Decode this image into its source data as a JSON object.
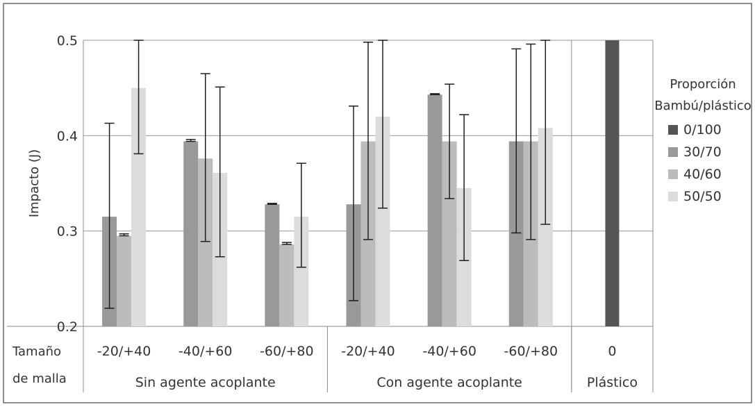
{
  "chart_data": {
    "type": "bar",
    "title": "",
    "ylabel": "Impacto (J)",
    "xlabel_row_title_1": "Tamaño",
    "xlabel_row_title_2": "de malla",
    "ylim": [
      0.2,
      0.5
    ],
    "yticks": [
      "0.2",
      "0.3",
      "0.4",
      "0.5"
    ],
    "grid": true,
    "legend_title_1": "Proporción",
    "legend_title_2": "Bambú/plástico",
    "legend_placement": "right",
    "series": [
      {
        "name": "0/100",
        "color": "#555555"
      },
      {
        "name": "30/70",
        "color": "#999999"
      },
      {
        "name": "40/60",
        "color": "#bcbcbc"
      },
      {
        "name": "50/50",
        "color": "#dcdcdc"
      }
    ],
    "categories": [
      "-20/+40",
      "-40/+60",
      "-60/+80",
      "-20/+40",
      "-40/+60",
      "-60/+80",
      "0"
    ],
    "groups": [
      {
        "label": "Sin agente acoplante",
        "span": 3
      },
      {
        "label": "Con agente acoplante",
        "span": 3
      },
      {
        "label": "Plástico",
        "span": 1
      }
    ],
    "data": [
      {
        "category": "-20/+40",
        "values": [
          null,
          0.315,
          0.295,
          0.45
        ],
        "errors": [
          null,
          [
            0.219,
            0.413
          ],
          [
            0.295,
            0.297
          ],
          [
            0.381,
            0.5
          ]
        ]
      },
      {
        "category": "-40/+60",
        "values": [
          null,
          0.394,
          0.376,
          0.361
        ],
        "errors": [
          null,
          [
            0.394,
            0.396
          ],
          [
            0.289,
            0.465
          ],
          [
            0.273,
            0.451
          ]
        ]
      },
      {
        "category": "-60/+80",
        "values": [
          null,
          0.328,
          0.286,
          0.315
        ],
        "errors": [
          null,
          [
            0.328,
            0.329
          ],
          [
            0.286,
            0.288
          ],
          [
            0.262,
            0.371
          ]
        ]
      },
      {
        "category": "-20/+40",
        "values": [
          null,
          0.328,
          0.394,
          0.42
        ],
        "errors": [
          null,
          [
            0.227,
            0.431
          ],
          [
            0.291,
            0.498
          ],
          [
            0.324,
            0.5
          ]
        ]
      },
      {
        "category": "-40/+60",
        "values": [
          null,
          0.443,
          0.394,
          0.345
        ],
        "errors": [
          null,
          [
            0.443,
            0.444
          ],
          [
            0.334,
            0.454
          ],
          [
            0.269,
            0.422
          ]
        ]
      },
      {
        "category": "-60/+80",
        "values": [
          null,
          0.394,
          0.394,
          0.408
        ],
        "errors": [
          null,
          [
            0.298,
            0.491
          ],
          [
            0.291,
            0.496
          ],
          [
            0.307,
            0.5
          ]
        ]
      },
      {
        "category": "0",
        "values": [
          0.5,
          null,
          null,
          null
        ],
        "errors": [
          null,
          null,
          null,
          null
        ]
      }
    ]
  }
}
